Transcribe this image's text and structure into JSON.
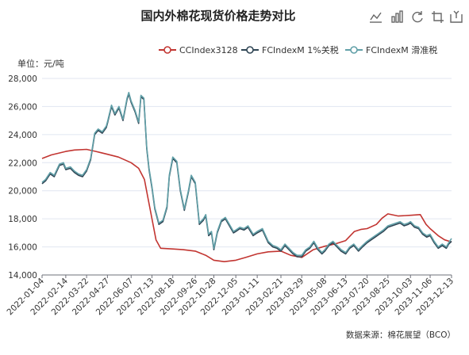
{
  "chart_data": {
    "type": "line",
    "title": "国内外棉花现货价格走势对比",
    "unit_label": "单位：元/吨",
    "source": "数据来源：棉花展望（BCO）",
    "ylim": [
      14000,
      28000
    ],
    "y_ticks": [
      14000,
      16000,
      18000,
      20000,
      22000,
      24000,
      26000,
      28000
    ],
    "y_tick_labels": [
      "14,000",
      "16,000",
      "18,000",
      "20,000",
      "22,000",
      "24,000",
      "26,000",
      "28,000"
    ],
    "x_tick_labels": [
      "2022-01-04",
      "2022-02-14",
      "2022-03-22",
      "2022-04-27",
      "2022-06-07",
      "2022-07-13",
      "2022-08-18",
      "2022-09-26",
      "2022-10-28",
      "2022-12-05",
      "2023-01-11",
      "2023-02-21",
      "2023-03-29",
      "2023-05-08",
      "2023-06-13",
      "2023-07-20",
      "2023-08-25",
      "2023-10-03",
      "2023-11-06",
      "2023-12-13"
    ],
    "x_range": [
      "2022-01-04",
      "2023-12-13"
    ],
    "grid": "horizontal",
    "legend_position": "top-right",
    "series": [
      {
        "name": "CCIndex3128",
        "color": "#c23531",
        "points": [
          [
            "2022-01-04",
            22300
          ],
          [
            "2022-01-20",
            22550
          ],
          [
            "2022-02-14",
            22800
          ],
          [
            "2022-03-01",
            22900
          ],
          [
            "2022-03-22",
            22950
          ],
          [
            "2022-04-07",
            22800
          ],
          [
            "2022-04-27",
            22600
          ],
          [
            "2022-05-16",
            22400
          ],
          [
            "2022-06-07",
            22000
          ],
          [
            "2022-06-20",
            21600
          ],
          [
            "2022-06-30",
            20800
          ],
          [
            "2022-07-06",
            19500
          ],
          [
            "2022-07-13",
            18000
          ],
          [
            "2022-07-20",
            16500
          ],
          [
            "2022-07-28",
            15900
          ],
          [
            "2022-08-18",
            15850
          ],
          [
            "2022-09-05",
            15800
          ],
          [
            "2022-09-26",
            15700
          ],
          [
            "2022-10-14",
            15400
          ],
          [
            "2022-10-28",
            15050
          ],
          [
            "2022-11-15",
            14950
          ],
          [
            "2022-12-05",
            15050
          ],
          [
            "2022-12-22",
            15250
          ],
          [
            "2023-01-11",
            15500
          ],
          [
            "2023-01-30",
            15650
          ],
          [
            "2023-02-21",
            15700
          ],
          [
            "2023-03-10",
            15400
          ],
          [
            "2023-03-29",
            15250
          ],
          [
            "2023-04-18",
            15800
          ],
          [
            "2023-05-08",
            16050
          ],
          [
            "2023-05-25",
            16200
          ],
          [
            "2023-06-13",
            16450
          ],
          [
            "2023-06-28",
            17100
          ],
          [
            "2023-07-10",
            17250
          ],
          [
            "2023-07-20",
            17300
          ],
          [
            "2023-08-05",
            17600
          ],
          [
            "2023-08-15",
            18050
          ],
          [
            "2023-08-25",
            18350
          ],
          [
            "2023-09-12",
            18200
          ],
          [
            "2023-10-03",
            18250
          ],
          [
            "2023-10-20",
            18300
          ],
          [
            "2023-10-30",
            17600
          ],
          [
            "2023-11-06",
            17300
          ],
          [
            "2023-11-20",
            16800
          ],
          [
            "2023-12-01",
            16500
          ],
          [
            "2023-12-13",
            16350
          ]
        ]
      },
      {
        "name": "FCIndexM 1%关税",
        "color": "#2f4554",
        "points": [
          [
            "2022-01-04",
            20500
          ],
          [
            "2022-01-10",
            20700
          ],
          [
            "2022-01-18",
            21200
          ],
          [
            "2022-01-25",
            21000
          ],
          [
            "2022-02-03",
            21800
          ],
          [
            "2022-02-10",
            21900
          ],
          [
            "2022-02-14",
            21500
          ],
          [
            "2022-02-22",
            21600
          ],
          [
            "2022-03-01",
            21300
          ],
          [
            "2022-03-08",
            21100
          ],
          [
            "2022-03-15",
            21000
          ],
          [
            "2022-03-22",
            21400
          ],
          [
            "2022-03-29",
            22200
          ],
          [
            "2022-04-05",
            24000
          ],
          [
            "2022-04-11",
            24300
          ],
          [
            "2022-04-18",
            24100
          ],
          [
            "2022-04-25",
            24500
          ],
          [
            "2022-04-27",
            24800
          ],
          [
            "2022-05-04",
            26000
          ],
          [
            "2022-05-10",
            25400
          ],
          [
            "2022-05-17",
            25900
          ],
          [
            "2022-05-24",
            25000
          ],
          [
            "2022-05-31",
            26500
          ],
          [
            "2022-06-03",
            26900
          ],
          [
            "2022-06-07",
            26300
          ],
          [
            "2022-06-14",
            25600
          ],
          [
            "2022-06-20",
            24800
          ],
          [
            "2022-06-24",
            26700
          ],
          [
            "2022-06-29",
            26500
          ],
          [
            "2022-07-04",
            23000
          ],
          [
            "2022-07-08",
            21500
          ],
          [
            "2022-07-13",
            20200
          ],
          [
            "2022-07-18",
            18700
          ],
          [
            "2022-07-25",
            17600
          ],
          [
            "2022-08-01",
            17800
          ],
          [
            "2022-08-08",
            18800
          ],
          [
            "2022-08-12",
            21000
          ],
          [
            "2022-08-18",
            22300
          ],
          [
            "2022-08-25",
            22000
          ],
          [
            "2022-08-31",
            20000
          ],
          [
            "2022-09-07",
            18600
          ],
          [
            "2022-09-14",
            19900
          ],
          [
            "2022-09-19",
            21000
          ],
          [
            "2022-09-26",
            20500
          ],
          [
            "2022-10-03",
            17600
          ],
          [
            "2022-10-10",
            17900
          ],
          [
            "2022-10-14",
            18200
          ],
          [
            "2022-10-19",
            16800
          ],
          [
            "2022-10-24",
            17000
          ],
          [
            "2022-10-28",
            15800
          ],
          [
            "2022-11-03",
            17000
          ],
          [
            "2022-11-10",
            17800
          ],
          [
            "2022-11-17",
            18000
          ],
          [
            "2022-11-24",
            17500
          ],
          [
            "2022-12-01",
            17000
          ],
          [
            "2022-12-05",
            17100
          ],
          [
            "2022-12-12",
            17300
          ],
          [
            "2022-12-19",
            17200
          ],
          [
            "2022-12-26",
            17400
          ],
          [
            "2023-01-04",
            16800
          ],
          [
            "2023-01-11",
            17000
          ],
          [
            "2023-01-20",
            17200
          ],
          [
            "2023-01-30",
            16300
          ],
          [
            "2023-02-07",
            16000
          ],
          [
            "2023-02-14",
            15900
          ],
          [
            "2023-02-21",
            15700
          ],
          [
            "2023-02-28",
            16100
          ],
          [
            "2023-03-07",
            15800
          ],
          [
            "2023-03-14",
            15500
          ],
          [
            "2023-03-21",
            15300
          ],
          [
            "2023-03-29",
            15300
          ],
          [
            "2023-04-05",
            15700
          ],
          [
            "2023-04-12",
            15900
          ],
          [
            "2023-04-19",
            16300
          ],
          [
            "2023-04-26",
            15800
          ],
          [
            "2023-05-03",
            15500
          ],
          [
            "2023-05-08",
            15700
          ],
          [
            "2023-05-15",
            16100
          ],
          [
            "2023-05-22",
            16300
          ],
          [
            "2023-05-29",
            16000
          ],
          [
            "2023-06-05",
            15700
          ],
          [
            "2023-06-13",
            15500
          ],
          [
            "2023-06-20",
            15900
          ],
          [
            "2023-06-27",
            16100
          ],
          [
            "2023-07-05",
            15700
          ],
          [
            "2023-07-12",
            16000
          ],
          [
            "2023-07-20",
            16300
          ],
          [
            "2023-07-27",
            16500
          ],
          [
            "2023-08-03",
            16700
          ],
          [
            "2023-08-10",
            16900
          ],
          [
            "2023-08-17",
            17100
          ],
          [
            "2023-08-25",
            17400
          ],
          [
            "2023-09-01",
            17500
          ],
          [
            "2023-09-08",
            17600
          ],
          [
            "2023-09-15",
            17700
          ],
          [
            "2023-09-22",
            17500
          ],
          [
            "2023-09-29",
            17600
          ],
          [
            "2023-10-03",
            17700
          ],
          [
            "2023-10-10",
            17400
          ],
          [
            "2023-10-17",
            17300
          ],
          [
            "2023-10-24",
            16900
          ],
          [
            "2023-10-31",
            16700
          ],
          [
            "2023-11-06",
            16800
          ],
          [
            "2023-11-13",
            16300
          ],
          [
            "2023-11-20",
            15900
          ],
          [
            "2023-11-27",
            16100
          ],
          [
            "2023-12-04",
            15900
          ],
          [
            "2023-12-08",
            16200
          ],
          [
            "2023-12-13",
            16400
          ]
        ]
      },
      {
        "name": "FCIndexM 滑准税",
        "color": "#61a0a8",
        "points": [
          [
            "2022-01-04",
            20600
          ],
          [
            "2022-01-10",
            20800
          ],
          [
            "2022-01-18",
            21300
          ],
          [
            "2022-01-25",
            21100
          ],
          [
            "2022-02-03",
            21900
          ],
          [
            "2022-02-10",
            22000
          ],
          [
            "2022-02-14",
            21600
          ],
          [
            "2022-02-22",
            21700
          ],
          [
            "2022-03-01",
            21400
          ],
          [
            "2022-03-08",
            21200
          ],
          [
            "2022-03-15",
            21100
          ],
          [
            "2022-03-22",
            21500
          ],
          [
            "2022-03-29",
            22300
          ],
          [
            "2022-04-05",
            24100
          ],
          [
            "2022-04-11",
            24400
          ],
          [
            "2022-04-18",
            24200
          ],
          [
            "2022-04-25",
            24600
          ],
          [
            "2022-04-27",
            24900
          ],
          [
            "2022-05-04",
            26100
          ],
          [
            "2022-05-10",
            25500
          ],
          [
            "2022-05-17",
            26000
          ],
          [
            "2022-05-24",
            25100
          ],
          [
            "2022-05-31",
            26600
          ],
          [
            "2022-06-03",
            27000
          ],
          [
            "2022-06-07",
            26400
          ],
          [
            "2022-06-14",
            25700
          ],
          [
            "2022-06-20",
            24900
          ],
          [
            "2022-06-24",
            26800
          ],
          [
            "2022-06-29",
            26600
          ],
          [
            "2022-07-04",
            23100
          ],
          [
            "2022-07-08",
            21600
          ],
          [
            "2022-07-13",
            20300
          ],
          [
            "2022-07-18",
            18800
          ],
          [
            "2022-07-25",
            17700
          ],
          [
            "2022-08-01",
            17900
          ],
          [
            "2022-08-08",
            18900
          ],
          [
            "2022-08-12",
            21100
          ],
          [
            "2022-08-18",
            22400
          ],
          [
            "2022-08-25",
            22100
          ],
          [
            "2022-08-31",
            20100
          ],
          [
            "2022-09-07",
            18700
          ],
          [
            "2022-09-14",
            20000
          ],
          [
            "2022-09-19",
            21100
          ],
          [
            "2022-09-26",
            20600
          ],
          [
            "2022-10-03",
            17700
          ],
          [
            "2022-10-10",
            18000
          ],
          [
            "2022-10-14",
            18300
          ],
          [
            "2022-10-19",
            16900
          ],
          [
            "2022-10-24",
            17100
          ],
          [
            "2022-10-28",
            15900
          ],
          [
            "2022-11-03",
            17100
          ],
          [
            "2022-11-10",
            17900
          ],
          [
            "2022-11-17",
            18100
          ],
          [
            "2022-11-24",
            17600
          ],
          [
            "2022-12-01",
            17100
          ],
          [
            "2022-12-05",
            17200
          ],
          [
            "2022-12-12",
            17400
          ],
          [
            "2022-12-19",
            17300
          ],
          [
            "2022-12-26",
            17500
          ],
          [
            "2023-01-04",
            16900
          ],
          [
            "2023-01-11",
            17100
          ],
          [
            "2023-01-20",
            17300
          ],
          [
            "2023-01-30",
            16400
          ],
          [
            "2023-02-07",
            16100
          ],
          [
            "2023-02-14",
            16000
          ],
          [
            "2023-02-21",
            15800
          ],
          [
            "2023-02-28",
            16200
          ],
          [
            "2023-03-07",
            15900
          ],
          [
            "2023-03-14",
            15600
          ],
          [
            "2023-03-21",
            15400
          ],
          [
            "2023-03-29",
            15400
          ],
          [
            "2023-04-05",
            15800
          ],
          [
            "2023-04-12",
            16000
          ],
          [
            "2023-04-19",
            16400
          ],
          [
            "2023-04-26",
            15900
          ],
          [
            "2023-05-03",
            15600
          ],
          [
            "2023-05-08",
            15800
          ],
          [
            "2023-05-15",
            16200
          ],
          [
            "2023-05-22",
            16400
          ],
          [
            "2023-05-29",
            16100
          ],
          [
            "2023-06-05",
            15800
          ],
          [
            "2023-06-13",
            15600
          ],
          [
            "2023-06-20",
            16000
          ],
          [
            "2023-06-27",
            16200
          ],
          [
            "2023-07-05",
            15800
          ],
          [
            "2023-07-12",
            16100
          ],
          [
            "2023-07-20",
            16400
          ],
          [
            "2023-07-27",
            16600
          ],
          [
            "2023-08-03",
            16800
          ],
          [
            "2023-08-10",
            17000
          ],
          [
            "2023-08-17",
            17200
          ],
          [
            "2023-08-25",
            17500
          ],
          [
            "2023-09-01",
            17600
          ],
          [
            "2023-09-08",
            17700
          ],
          [
            "2023-09-15",
            17800
          ],
          [
            "2023-09-22",
            17600
          ],
          [
            "2023-09-29",
            17700
          ],
          [
            "2023-10-03",
            17800
          ],
          [
            "2023-10-10",
            17500
          ],
          [
            "2023-10-17",
            17400
          ],
          [
            "2023-10-24",
            17000
          ],
          [
            "2023-10-31",
            16800
          ],
          [
            "2023-11-06",
            16900
          ],
          [
            "2023-11-13",
            16400
          ],
          [
            "2023-11-20",
            16000
          ],
          [
            "2023-11-27",
            16200
          ],
          [
            "2023-12-04",
            16000
          ],
          [
            "2023-12-08",
            16300
          ],
          [
            "2023-12-13",
            16600
          ]
        ]
      }
    ]
  },
  "toolbox": {
    "icons": [
      "line-chart-icon",
      "bar-chart-icon",
      "restore-icon",
      "crop-icon",
      "save-icon"
    ]
  },
  "colors": {
    "axis": "#6e7079",
    "grid": "#e0e6f1"
  }
}
